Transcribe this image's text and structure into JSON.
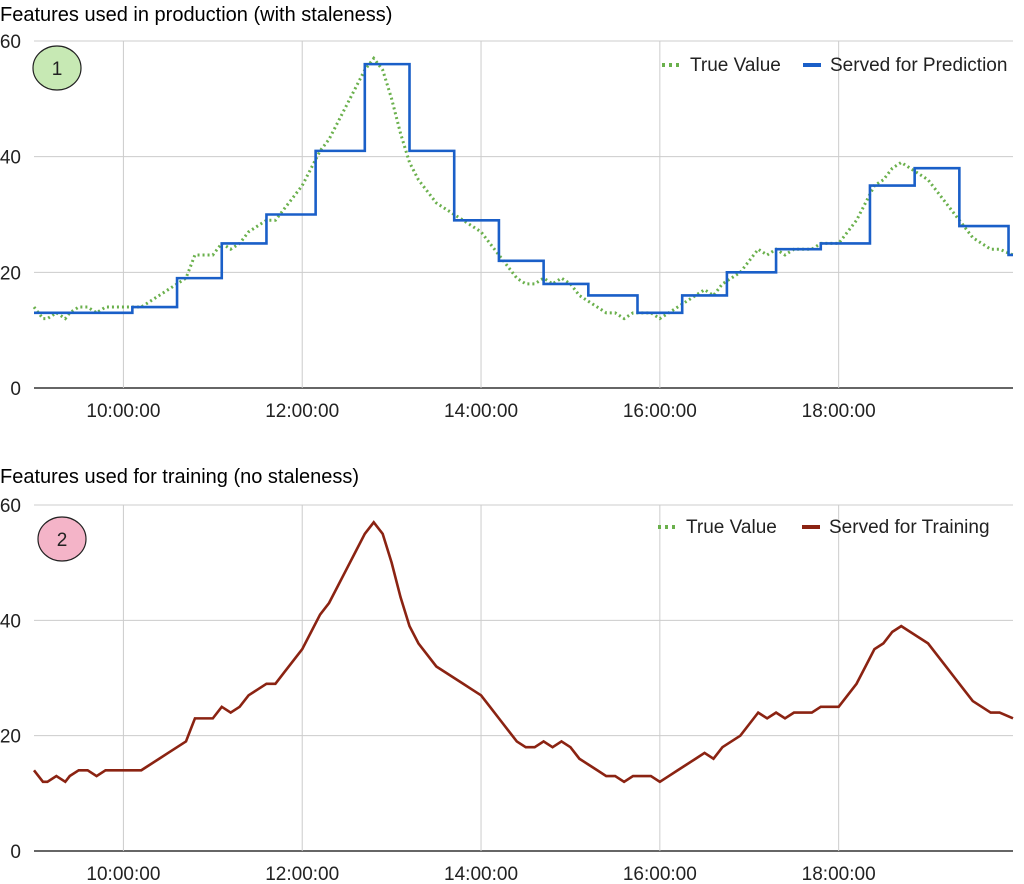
{
  "colors": {
    "true_value": "#6ab04c",
    "served_prediction": "#1a5fc8",
    "served_training": "#8b2312",
    "badge1_fill": "#c7e9b4",
    "badge2_fill": "#f4b4c8",
    "grid": "#cccccc"
  },
  "chart_data": [
    {
      "type": "line",
      "title": "Features used in production (with staleness)",
      "badge": "1",
      "xlabel": "",
      "ylabel": "",
      "ylim": [
        0,
        60
      ],
      "xlim_hours": [
        9.0,
        19.95
      ],
      "y_ticks": [
        0,
        20,
        40,
        60
      ],
      "x_ticks": [
        "10:00:00",
        "12:00:00",
        "14:00:00",
        "16:00:00",
        "18:00:00"
      ],
      "x_tick_hours": [
        10,
        12,
        14,
        16,
        18
      ],
      "grid": true,
      "legend_position": "top-right",
      "series": [
        {
          "name": "True Value",
          "style": "dotted",
          "color": "#6ab04c",
          "x_hours": [
            9.0,
            9.1,
            9.15,
            9.25,
            9.35,
            9.4,
            9.5,
            9.6,
            9.7,
            9.8,
            9.9,
            10.0,
            10.1,
            10.2,
            10.3,
            10.4,
            10.5,
            10.6,
            10.7,
            10.75,
            10.8,
            10.9,
            11.0,
            11.1,
            11.2,
            11.3,
            11.4,
            11.5,
            11.6,
            11.7,
            11.8,
            11.9,
            12.0,
            12.1,
            12.2,
            12.3,
            12.4,
            12.5,
            12.6,
            12.7,
            12.8,
            12.9,
            13.0,
            13.1,
            13.2,
            13.3,
            13.4,
            13.5,
            13.6,
            13.7,
            13.8,
            13.9,
            14.0,
            14.1,
            14.2,
            14.3,
            14.4,
            14.5,
            14.6,
            14.7,
            14.8,
            14.9,
            15.0,
            15.1,
            15.2,
            15.3,
            15.4,
            15.5,
            15.6,
            15.7,
            15.8,
            15.9,
            16.0,
            16.1,
            16.2,
            16.3,
            16.4,
            16.5,
            16.6,
            16.7,
            16.8,
            16.9,
            17.0,
            17.1,
            17.2,
            17.3,
            17.4,
            17.5,
            17.6,
            17.7,
            17.8,
            17.9,
            18.0,
            18.1,
            18.2,
            18.3,
            18.4,
            18.5,
            18.6,
            18.7,
            18.8,
            18.9,
            19.0,
            19.1,
            19.2,
            19.3,
            19.4,
            19.5,
            19.6,
            19.7,
            19.8,
            19.95
          ],
          "values": [
            14,
            12,
            12,
            13,
            12,
            13,
            14,
            14,
            13,
            14,
            14,
            14,
            14,
            14,
            15,
            16,
            17,
            18,
            19,
            21,
            23,
            23,
            23,
            25,
            24,
            25,
            27,
            28,
            29,
            29,
            31,
            33,
            35,
            38,
            41,
            43,
            46,
            49,
            52,
            55,
            57,
            55,
            50,
            44,
            39,
            36,
            34,
            32,
            31,
            30,
            29,
            28,
            27,
            25,
            23,
            21,
            19,
            18,
            18,
            19,
            18,
            19,
            18,
            16,
            15,
            14,
            13,
            13,
            12,
            13,
            13,
            13,
            12,
            13,
            14,
            15,
            16,
            17,
            16,
            18,
            19,
            20,
            22,
            24,
            23,
            24,
            23,
            24,
            24,
            24,
            25,
            25,
            25,
            27,
            29,
            32,
            35,
            36,
            38,
            39,
            38,
            37,
            36,
            34,
            32,
            30,
            28,
            26,
            25,
            24,
            24,
            23
          ]
        },
        {
          "name": "Served for Prediction",
          "style": "step",
          "color": "#1a5fc8",
          "step_x_hours": [
            9.0,
            10.1,
            10.6,
            11.1,
            11.6,
            12.15,
            12.7,
            13.2,
            13.7,
            14.2,
            14.7,
            15.2,
            15.75,
            16.25,
            16.75,
            17.3,
            17.8,
            18.35,
            18.85,
            19.35,
            19.9,
            19.95
          ],
          "step_values": [
            13,
            14,
            19,
            25,
            30,
            41,
            56,
            41,
            29,
            22,
            18,
            16,
            13,
            16,
            20,
            24,
            25,
            35,
            38,
            28,
            23,
            23
          ]
        }
      ]
    },
    {
      "type": "line",
      "title": "Features used for training (no staleness)",
      "badge": "2",
      "xlabel": "",
      "ylabel": "",
      "ylim": [
        0,
        60
      ],
      "xlim_hours": [
        9.0,
        19.95
      ],
      "y_ticks": [
        0,
        20,
        40,
        60
      ],
      "x_ticks": [
        "10:00:00",
        "12:00:00",
        "14:00:00",
        "16:00:00",
        "18:00:00"
      ],
      "x_tick_hours": [
        10,
        12,
        14,
        16,
        18
      ],
      "grid": true,
      "legend_position": "top-right",
      "legend_entries": [
        {
          "name": "True Value",
          "style": "dotted",
          "color": "#6ab04c"
        },
        {
          "name": "Served for Training",
          "style": "solid",
          "color": "#8b2312"
        }
      ],
      "series": [
        {
          "name": "Served for Training",
          "style": "solid",
          "color": "#8b2312",
          "x_hours": [
            9.0,
            9.1,
            9.15,
            9.25,
            9.35,
            9.4,
            9.5,
            9.6,
            9.7,
            9.8,
            9.9,
            10.0,
            10.1,
            10.2,
            10.3,
            10.4,
            10.5,
            10.6,
            10.7,
            10.75,
            10.8,
            10.9,
            11.0,
            11.1,
            11.2,
            11.3,
            11.4,
            11.5,
            11.6,
            11.7,
            11.8,
            11.9,
            12.0,
            12.1,
            12.2,
            12.3,
            12.4,
            12.5,
            12.6,
            12.7,
            12.8,
            12.9,
            13.0,
            13.1,
            13.2,
            13.3,
            13.4,
            13.5,
            13.6,
            13.7,
            13.8,
            13.9,
            14.0,
            14.1,
            14.2,
            14.3,
            14.4,
            14.5,
            14.6,
            14.7,
            14.8,
            14.9,
            15.0,
            15.1,
            15.2,
            15.3,
            15.4,
            15.5,
            15.6,
            15.7,
            15.8,
            15.9,
            16.0,
            16.1,
            16.2,
            16.3,
            16.4,
            16.5,
            16.6,
            16.7,
            16.8,
            16.9,
            17.0,
            17.1,
            17.2,
            17.3,
            17.4,
            17.5,
            17.6,
            17.7,
            17.8,
            17.9,
            18.0,
            18.1,
            18.2,
            18.3,
            18.4,
            18.5,
            18.6,
            18.7,
            18.8,
            18.9,
            19.0,
            19.1,
            19.2,
            19.3,
            19.4,
            19.5,
            19.6,
            19.7,
            19.8,
            19.95
          ],
          "values": [
            14,
            12,
            12,
            13,
            12,
            13,
            14,
            14,
            13,
            14,
            14,
            14,
            14,
            14,
            15,
            16,
            17,
            18,
            19,
            21,
            23,
            23,
            23,
            25,
            24,
            25,
            27,
            28,
            29,
            29,
            31,
            33,
            35,
            38,
            41,
            43,
            46,
            49,
            52,
            55,
            57,
            55,
            50,
            44,
            39,
            36,
            34,
            32,
            31,
            30,
            29,
            28,
            27,
            25,
            23,
            21,
            19,
            18,
            18,
            19,
            18,
            19,
            18,
            16,
            15,
            14,
            13,
            13,
            12,
            13,
            13,
            13,
            12,
            13,
            14,
            15,
            16,
            17,
            16,
            18,
            19,
            20,
            22,
            24,
            23,
            24,
            23,
            24,
            24,
            24,
            25,
            25,
            25,
            27,
            29,
            32,
            35,
            36,
            38,
            39,
            38,
            37,
            36,
            34,
            32,
            30,
            28,
            26,
            25,
            24,
            24,
            23
          ]
        }
      ]
    }
  ]
}
